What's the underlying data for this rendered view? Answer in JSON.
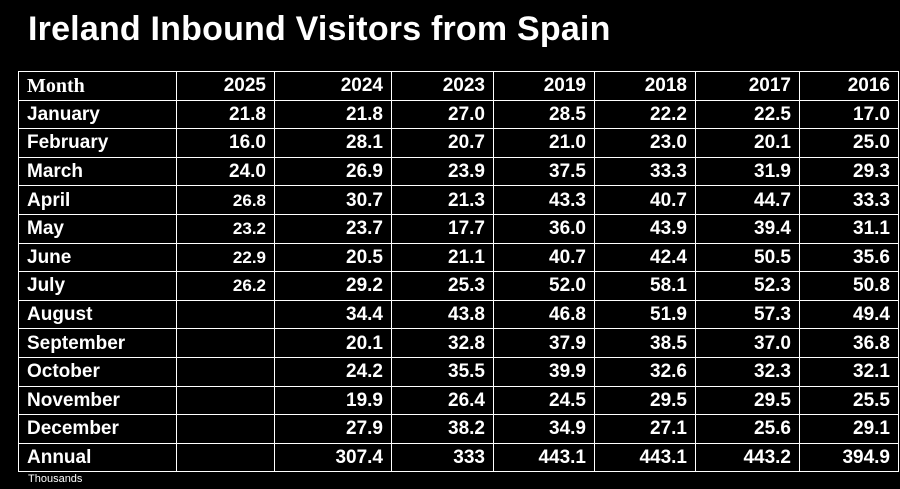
{
  "title": "Ireland Inbound Visitors from Spain",
  "unit_note": "Thousands",
  "chart_data": {
    "type": "table",
    "title": "Ireland Inbound Visitors from Spain",
    "columns": [
      "Month",
      "2025",
      "2024",
      "2023",
      "2019",
      "2018",
      "2017",
      "2016"
    ],
    "rows": [
      {
        "label": "January",
        "values": [
          "21.8",
          "21.8",
          "27.0",
          "28.5",
          "22.2",
          "22.5",
          "17.0"
        ]
      },
      {
        "label": "February",
        "values": [
          "16.0",
          "28.1",
          "20.7",
          "21.0",
          "23.0",
          "20.1",
          "25.0"
        ]
      },
      {
        "label": "March",
        "values": [
          "24.0",
          "26.9",
          "23.9",
          "37.5",
          "33.3",
          "31.9",
          "29.3"
        ]
      },
      {
        "label": "April",
        "values": [
          "26.8",
          "30.7",
          "21.3",
          "43.3",
          "40.7",
          "44.7",
          "33.3"
        ]
      },
      {
        "label": "May",
        "values": [
          "23.2",
          "23.7",
          "17.7",
          "36.0",
          "43.9",
          "39.4",
          "31.1"
        ]
      },
      {
        "label": "June",
        "values": [
          "22.9",
          "20.5",
          "21.1",
          "40.7",
          "42.4",
          "50.5",
          "35.6"
        ]
      },
      {
        "label": "July",
        "values": [
          "26.2",
          "29.2",
          "25.3",
          "52.0",
          "58.1",
          "52.3",
          "50.8"
        ]
      },
      {
        "label": "August",
        "values": [
          "",
          "34.4",
          "43.8",
          "46.8",
          "51.9",
          "57.3",
          "49.4"
        ]
      },
      {
        "label": "September",
        "values": [
          "",
          "20.1",
          "32.8",
          "37.9",
          "38.5",
          "37.0",
          "36.8"
        ]
      },
      {
        "label": "October",
        "values": [
          "",
          "24.2",
          "35.5",
          "39.9",
          "32.6",
          "32.3",
          "32.1"
        ]
      },
      {
        "label": "November",
        "values": [
          "",
          "19.9",
          "26.4",
          "24.5",
          "29.5",
          "29.5",
          "25.5"
        ]
      },
      {
        "label": "December",
        "values": [
          "",
          "27.9",
          "38.2",
          "34.9",
          "27.1",
          "25.6",
          "29.1"
        ]
      },
      {
        "label": "Annual",
        "values": [
          "",
          "307.4",
          "333",
          "443.1",
          "443.1",
          "443.2",
          "394.9"
        ]
      }
    ]
  }
}
